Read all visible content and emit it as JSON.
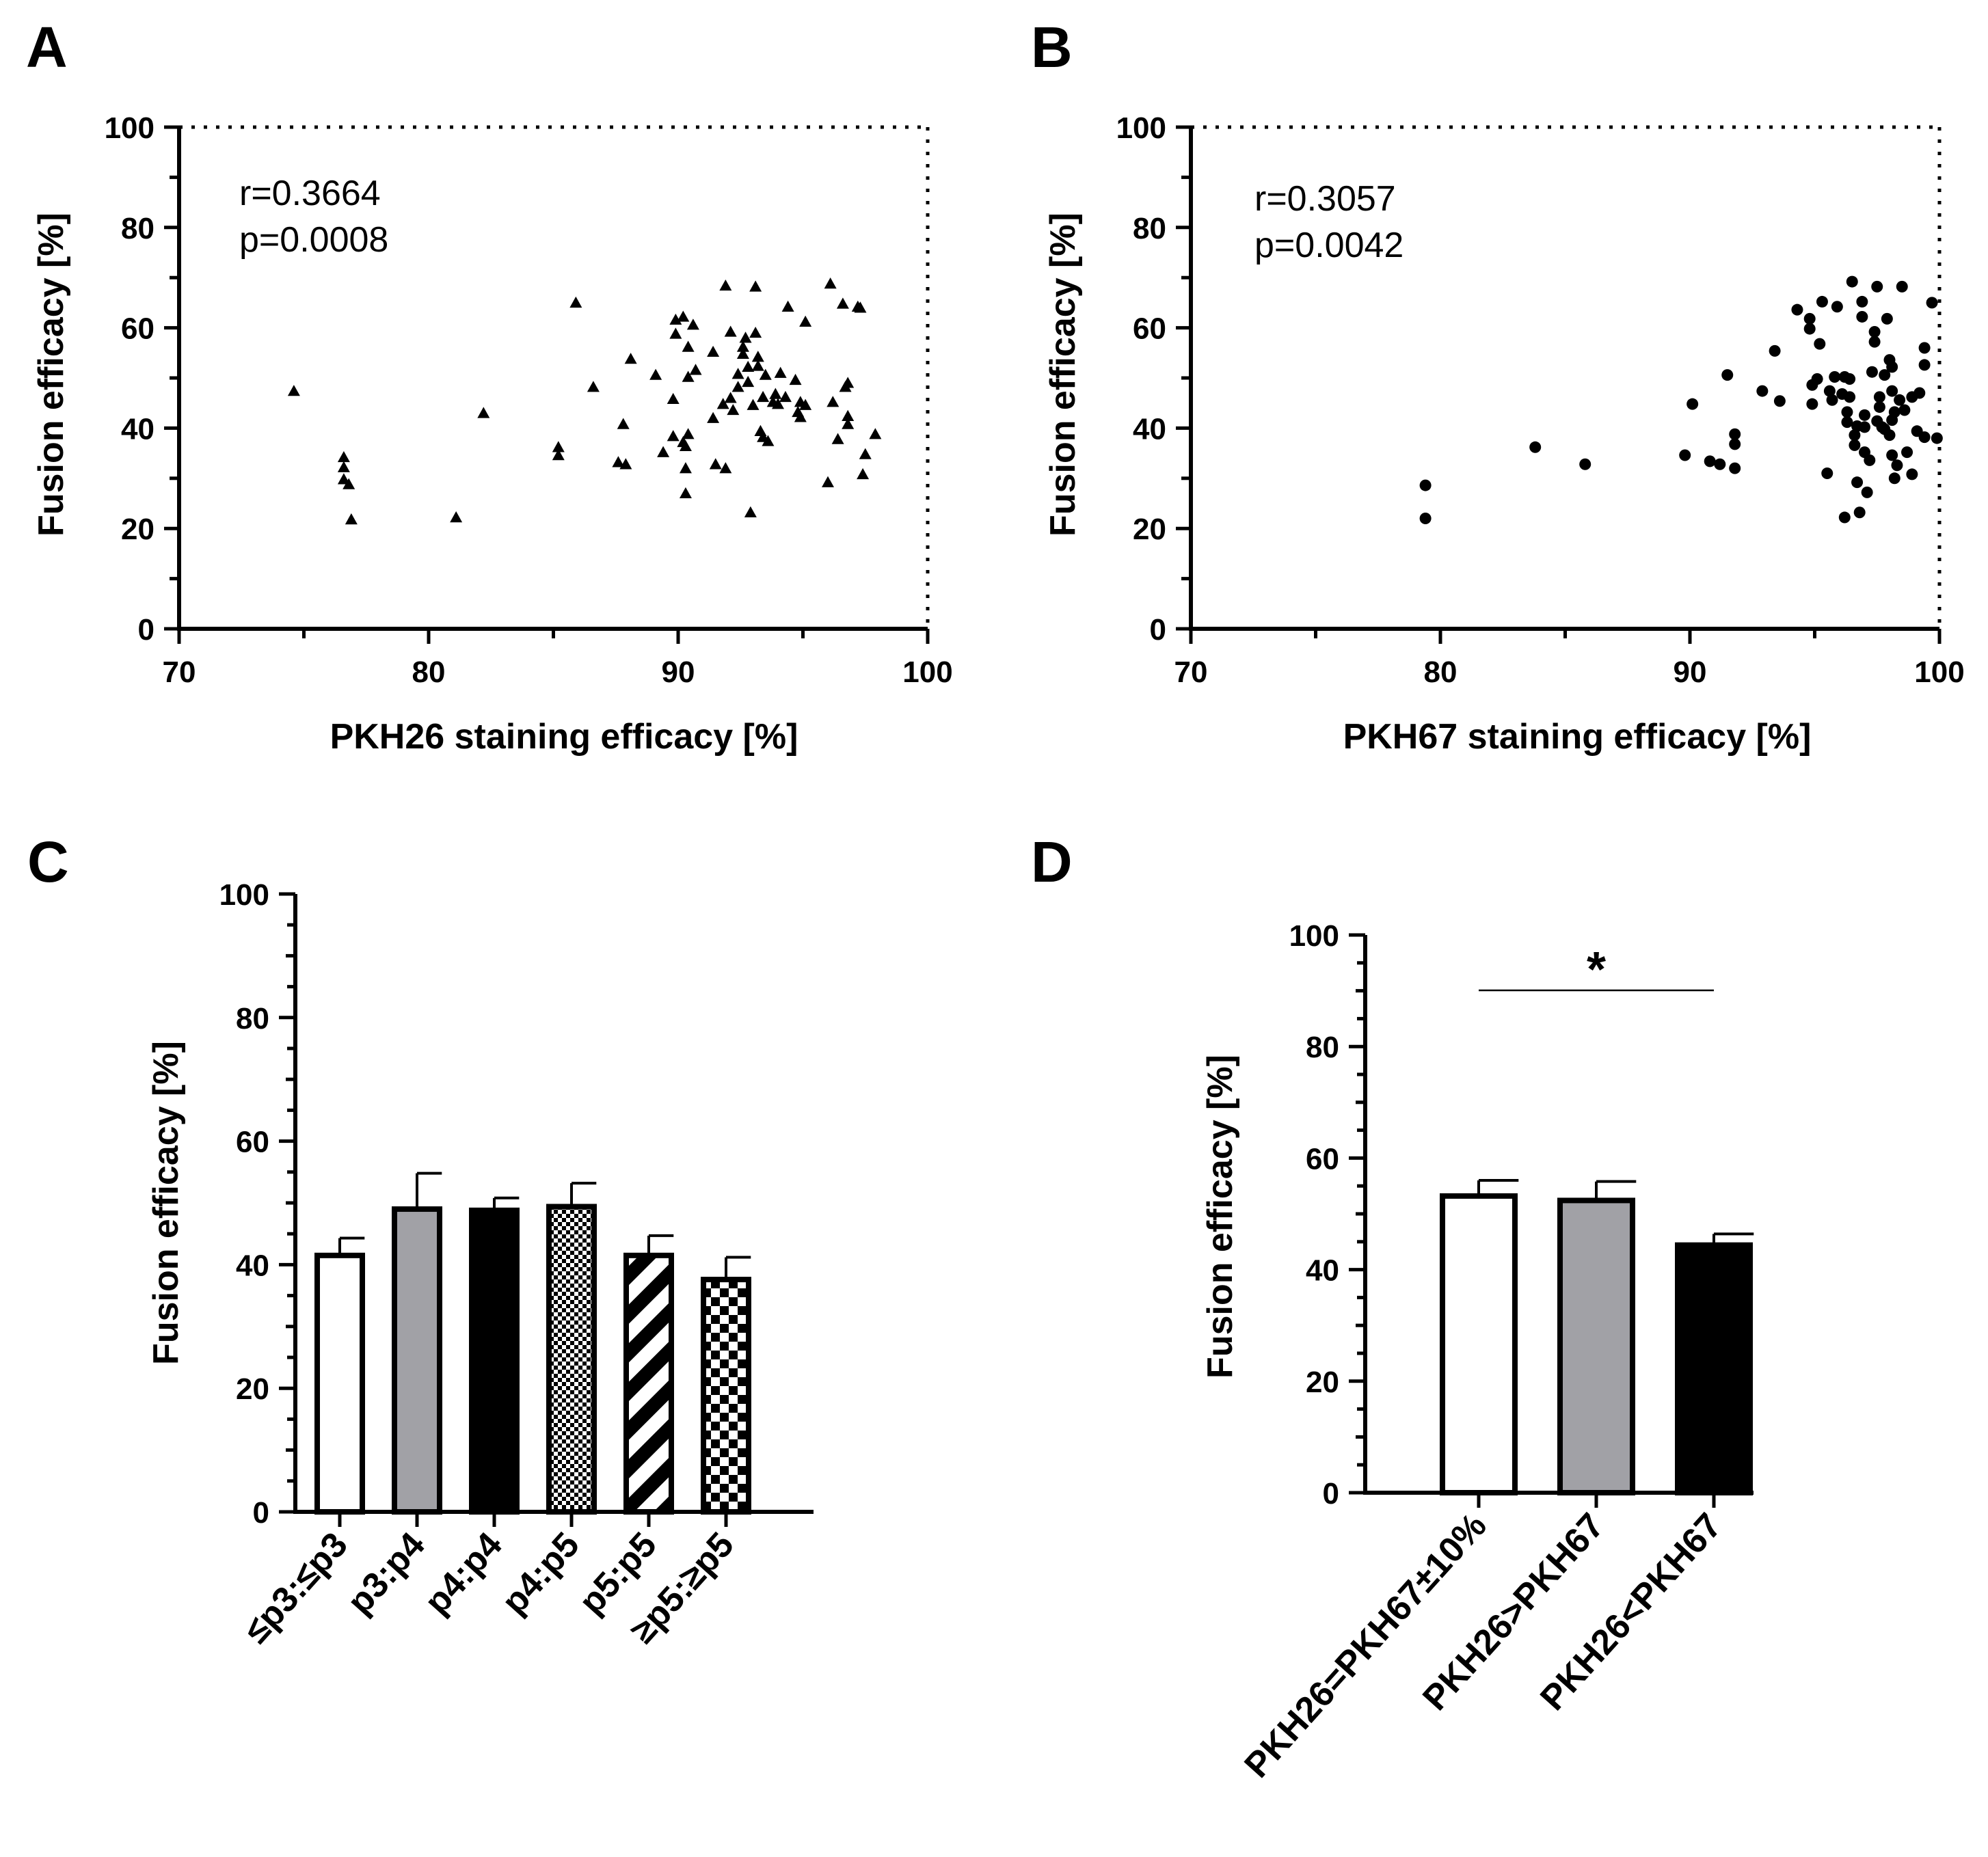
{
  "chart_data": [
    {
      "panel": "A",
      "type": "scatter",
      "xlabel": "PKH26 staining efficacy [%]",
      "ylabel": "Fusion efficacy [%]",
      "xlim": [
        70,
        100
      ],
      "ylim": [
        0,
        100
      ],
      "xticks": [
        "70",
        "80",
        "90",
        "100"
      ],
      "yticks": [
        "0",
        "20",
        "40",
        "60",
        "80",
        "100"
      ],
      "marker": "triangle",
      "annotations": [
        "r=0.3664",
        "p=0.0008"
      ],
      "points": [
        [
          74.6,
          47.4
        ],
        [
          76.6,
          34.2
        ],
        [
          76.6,
          32.2
        ],
        [
          76.6,
          29.8
        ],
        [
          76.8,
          28.8
        ],
        [
          76.9,
          21.8
        ],
        [
          81.1,
          22.2
        ],
        [
          82.2,
          43.0
        ],
        [
          85.2,
          36.2
        ],
        [
          85.2,
          34.6
        ],
        [
          85.9,
          65.0
        ],
        [
          86.6,
          48.2
        ],
        [
          87.6,
          33.2
        ],
        [
          87.8,
          40.8
        ],
        [
          87.9,
          32.8
        ],
        [
          88.1,
          53.8
        ],
        [
          89.1,
          50.6
        ],
        [
          89.4,
          35.2
        ],
        [
          89.8,
          38.4
        ],
        [
          89.8,
          45.8
        ],
        [
          89.9,
          61.6
        ],
        [
          89.9,
          58.8
        ],
        [
          90.2,
          62.2
        ],
        [
          90.2,
          37.2
        ],
        [
          90.3,
          32.0
        ],
        [
          90.3,
          27.0
        ],
        [
          90.3,
          36.4
        ],
        [
          90.4,
          56.2
        ],
        [
          90.4,
          38.8
        ],
        [
          90.4,
          50.2
        ],
        [
          90.6,
          60.6
        ],
        [
          90.7,
          51.6
        ],
        [
          91.4,
          55.2
        ],
        [
          91.4,
          42.0
        ],
        [
          91.5,
          32.8
        ],
        [
          91.8,
          44.8
        ],
        [
          91.9,
          32.0
        ],
        [
          91.9,
          68.4
        ],
        [
          92.1,
          59.2
        ],
        [
          92.1,
          46.0
        ],
        [
          92.2,
          43.6
        ],
        [
          92.4,
          50.8
        ],
        [
          92.4,
          48.2
        ],
        [
          92.6,
          56.2
        ],
        [
          92.6,
          54.8
        ],
        [
          92.7,
          58.0
        ],
        [
          92.8,
          52.2
        ],
        [
          92.8,
          49.2
        ],
        [
          92.9,
          23.2
        ],
        [
          93.0,
          44.6
        ],
        [
          93.1,
          68.2
        ],
        [
          93.1,
          59.0
        ],
        [
          93.2,
          54.2
        ],
        [
          93.2,
          52.4
        ],
        [
          93.3,
          39.4
        ],
        [
          93.4,
          38.2
        ],
        [
          93.4,
          46.2
        ],
        [
          93.5,
          50.6
        ],
        [
          93.6,
          37.4
        ],
        [
          93.8,
          45.2
        ],
        [
          93.9,
          46.8
        ],
        [
          94.0,
          44.8
        ],
        [
          94.1,
          51.0
        ],
        [
          94.3,
          46.2
        ],
        [
          94.4,
          64.2
        ],
        [
          94.7,
          49.6
        ],
        [
          94.8,
          43.2
        ],
        [
          94.9,
          45.2
        ],
        [
          94.9,
          42.2
        ],
        [
          95.1,
          61.2
        ],
        [
          95.1,
          44.6
        ],
        [
          96.0,
          29.2
        ],
        [
          96.1,
          68.8
        ],
        [
          96.2,
          45.2
        ],
        [
          96.4,
          37.8
        ],
        [
          96.6,
          64.8
        ],
        [
          96.7,
          48.2
        ],
        [
          96.8,
          49.0
        ],
        [
          96.8,
          40.8
        ],
        [
          96.8,
          42.4
        ],
        [
          97.2,
          64.2
        ],
        [
          97.3,
          64.0
        ],
        [
          97.4,
          30.8
        ],
        [
          97.5,
          34.8
        ],
        [
          97.9,
          38.8
        ]
      ]
    },
    {
      "panel": "B",
      "type": "scatter",
      "xlabel": "PKH67 staining efficacy [%]",
      "ylabel": "Fusion efficacy [%]",
      "xlim": [
        70,
        100
      ],
      "ylim": [
        0,
        100
      ],
      "xticks": [
        "70",
        "80",
        "90",
        "100"
      ],
      "yticks": [
        "0",
        "20",
        "40",
        "60",
        "80",
        "100"
      ],
      "marker": "circle",
      "annotations": [
        "r=0.3057",
        "p=0.0042"
      ],
      "points": [
        [
          79.4,
          28.6
        ],
        [
          79.4,
          22.0
        ],
        [
          83.8,
          36.2
        ],
        [
          85.8,
          32.8
        ],
        [
          89.8,
          34.6
        ],
        [
          90.1,
          44.8
        ],
        [
          90.8,
          33.4
        ],
        [
          91.2,
          32.8
        ],
        [
          91.5,
          50.6
        ],
        [
          91.8,
          38.8
        ],
        [
          91.8,
          36.8
        ],
        [
          91.8,
          32.0
        ],
        [
          92.9,
          47.4
        ],
        [
          93.4,
          55.4
        ],
        [
          93.6,
          45.4
        ],
        [
          94.3,
          63.6
        ],
        [
          94.8,
          59.8
        ],
        [
          94.8,
          61.8
        ],
        [
          94.9,
          44.8
        ],
        [
          94.9,
          48.6
        ],
        [
          95.1,
          49.8
        ],
        [
          95.2,
          56.8
        ],
        [
          95.3,
          65.2
        ],
        [
          95.5,
          31.0
        ],
        [
          95.6,
          47.4
        ],
        [
          95.7,
          45.6
        ],
        [
          95.8,
          50.2
        ],
        [
          95.9,
          64.2
        ],
        [
          96.1,
          46.8
        ],
        [
          96.2,
          50.2
        ],
        [
          96.2,
          22.2
        ],
        [
          96.3,
          43.2
        ],
        [
          96.3,
          41.2
        ],
        [
          96.4,
          49.8
        ],
        [
          96.4,
          46.2
        ],
        [
          96.5,
          69.2
        ],
        [
          96.6,
          36.6
        ],
        [
          96.6,
          38.6
        ],
        [
          96.7,
          29.2
        ],
        [
          96.7,
          40.4
        ],
        [
          96.8,
          23.2
        ],
        [
          96.9,
          65.2
        ],
        [
          96.9,
          62.2
        ],
        [
          97.0,
          40.2
        ],
        [
          97.0,
          42.6
        ],
        [
          97.0,
          35.2
        ],
        [
          97.1,
          27.2
        ],
        [
          97.2,
          33.6
        ],
        [
          97.3,
          51.2
        ],
        [
          97.4,
          59.2
        ],
        [
          97.4,
          57.2
        ],
        [
          97.5,
          68.2
        ],
        [
          97.5,
          41.4
        ],
        [
          97.6,
          46.2
        ],
        [
          97.6,
          44.2
        ],
        [
          97.7,
          40.2
        ],
        [
          97.8,
          39.8
        ],
        [
          97.8,
          50.6
        ],
        [
          97.9,
          61.8
        ],
        [
          98.0,
          38.6
        ],
        [
          98.0,
          53.6
        ],
        [
          98.1,
          52.2
        ],
        [
          98.1,
          47.4
        ],
        [
          98.1,
          41.6
        ],
        [
          98.1,
          34.6
        ],
        [
          98.2,
          30.0
        ],
        [
          98.2,
          43.2
        ],
        [
          98.3,
          32.6
        ],
        [
          98.4,
          45.6
        ],
        [
          98.5,
          68.2
        ],
        [
          98.6,
          43.6
        ],
        [
          98.7,
          35.2
        ],
        [
          98.9,
          46.2
        ],
        [
          98.9,
          30.8
        ],
        [
          99.1,
          39.4
        ],
        [
          99.2,
          47.0
        ],
        [
          99.4,
          52.6
        ],
        [
          99.4,
          56.0
        ],
        [
          99.4,
          38.2
        ],
        [
          99.7,
          65.0
        ],
        [
          99.9,
          38.0
        ]
      ]
    },
    {
      "panel": "C",
      "type": "bar",
      "ylabel": "Fusion efficacy [%]",
      "ylim": [
        0,
        100
      ],
      "yticks": [
        "0",
        "20",
        "40",
        "60",
        "80",
        "100"
      ],
      "categories": [
        "≤p3:≤p3",
        "p3:p4",
        "p4:p4",
        "p4:p5",
        "p5:p5",
        "≥p5:≥p5"
      ],
      "values": [
        41.5,
        49.0,
        48.8,
        49.4,
        41.5,
        37.6
      ],
      "errors": [
        2.8,
        5.8,
        2.0,
        3.8,
        3.2,
        3.6
      ],
      "fills": [
        "white",
        "gray",
        "black",
        "fine-checker",
        "diagonal-stripes",
        "coarse-checker"
      ]
    },
    {
      "panel": "D",
      "type": "bar",
      "ylabel": "Fusion efficacy [%]",
      "ylim": [
        0,
        100
      ],
      "yticks": [
        "0",
        "20",
        "40",
        "60",
        "80",
        "100"
      ],
      "categories": [
        "PKH26=PKH67±10%",
        "PKH26>PKH67",
        "PKH26<PKH67"
      ],
      "values": [
        53.2,
        52.4,
        44.4
      ],
      "errors": [
        2.8,
        3.4,
        2.0
      ],
      "fills": [
        "white",
        "gray",
        "black"
      ],
      "significance": {
        "between": [
          0,
          2
        ],
        "label": "*"
      }
    }
  ]
}
